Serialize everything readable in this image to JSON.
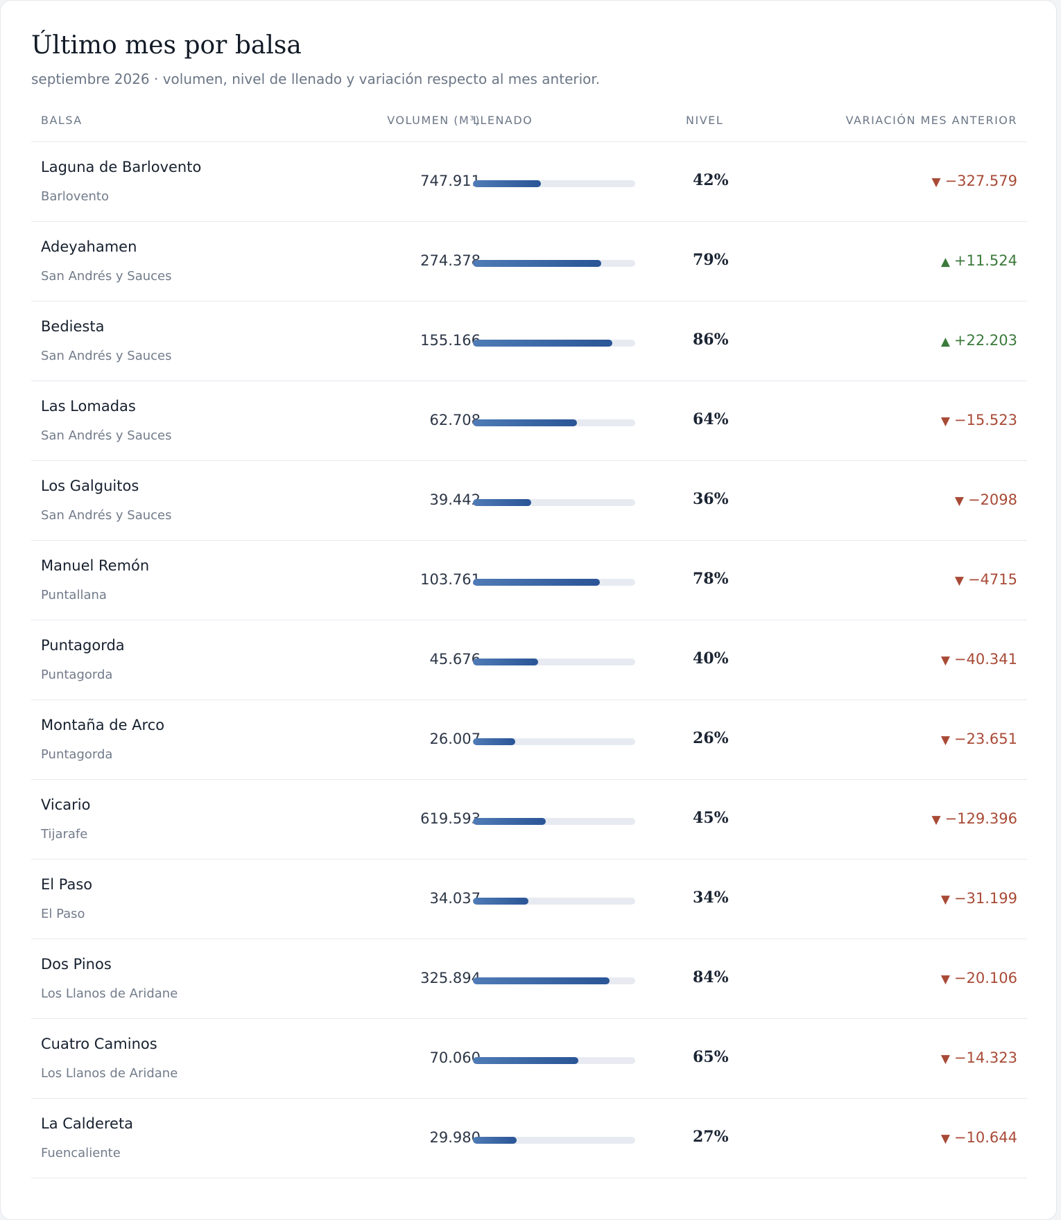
{
  "header": {
    "title": "Último mes por balsa",
    "subtitle": "septiembre 2026 · volumen, nivel de llenado y variación respecto al mes anterior."
  },
  "columns": {
    "name": "BALSA",
    "volume": "VOLUMEN (M³)",
    "fill": "LLENADO",
    "level": "NIVEL",
    "variation": "VARIACIÓN MES ANTERIOR"
  },
  "colors": {
    "down": "#a84a36",
    "up": "#3b7a3b",
    "bar": "#2a5596"
  },
  "rows": [
    {
      "name": "Laguna de Barlovento",
      "municipality": "Barlovento",
      "volume": "747.911",
      "level_pct": 42,
      "level_label": "42%",
      "dir": "down",
      "variation": "−327.579"
    },
    {
      "name": "Adeyahamen",
      "municipality": "San Andrés y Sauces",
      "volume": "274.378",
      "level_pct": 79,
      "level_label": "79%",
      "dir": "up",
      "variation": "+11.524"
    },
    {
      "name": "Bediesta",
      "municipality": "San Andrés y Sauces",
      "volume": "155.166",
      "level_pct": 86,
      "level_label": "86%",
      "dir": "up",
      "variation": "+22.203"
    },
    {
      "name": "Las Lomadas",
      "municipality": "San Andrés y Sauces",
      "volume": "62.708",
      "level_pct": 64,
      "level_label": "64%",
      "dir": "down",
      "variation": "−15.523"
    },
    {
      "name": "Los Galguitos",
      "municipality": "San Andrés y Sauces",
      "volume": "39.442",
      "level_pct": 36,
      "level_label": "36%",
      "dir": "down",
      "variation": "−2098"
    },
    {
      "name": "Manuel Remón",
      "municipality": "Puntallana",
      "volume": "103.761",
      "level_pct": 78,
      "level_label": "78%",
      "dir": "down",
      "variation": "−4715"
    },
    {
      "name": "Puntagorda",
      "municipality": "Puntagorda",
      "volume": "45.676",
      "level_pct": 40,
      "level_label": "40%",
      "dir": "down",
      "variation": "−40.341"
    },
    {
      "name": "Montaña de Arco",
      "municipality": "Puntagorda",
      "volume": "26.007",
      "level_pct": 26,
      "level_label": "26%",
      "dir": "down",
      "variation": "−23.651"
    },
    {
      "name": "Vicario",
      "municipality": "Tijarafe",
      "volume": "619.593",
      "level_pct": 45,
      "level_label": "45%",
      "dir": "down",
      "variation": "−129.396"
    },
    {
      "name": "El Paso",
      "municipality": "El Paso",
      "volume": "34.037",
      "level_pct": 34,
      "level_label": "34%",
      "dir": "down",
      "variation": "−31.199"
    },
    {
      "name": "Dos Pinos",
      "municipality": "Los Llanos de Aridane",
      "volume": "325.894",
      "level_pct": 84,
      "level_label": "84%",
      "dir": "down",
      "variation": "−20.106"
    },
    {
      "name": "Cuatro Caminos",
      "municipality": "Los Llanos de Aridane",
      "volume": "70.060",
      "level_pct": 65,
      "level_label": "65%",
      "dir": "down",
      "variation": "−14.323"
    },
    {
      "name": "La Caldereta",
      "municipality": "Fuencaliente",
      "volume": "29.980",
      "level_pct": 27,
      "level_label": "27%",
      "dir": "down",
      "variation": "−10.644"
    }
  ]
}
